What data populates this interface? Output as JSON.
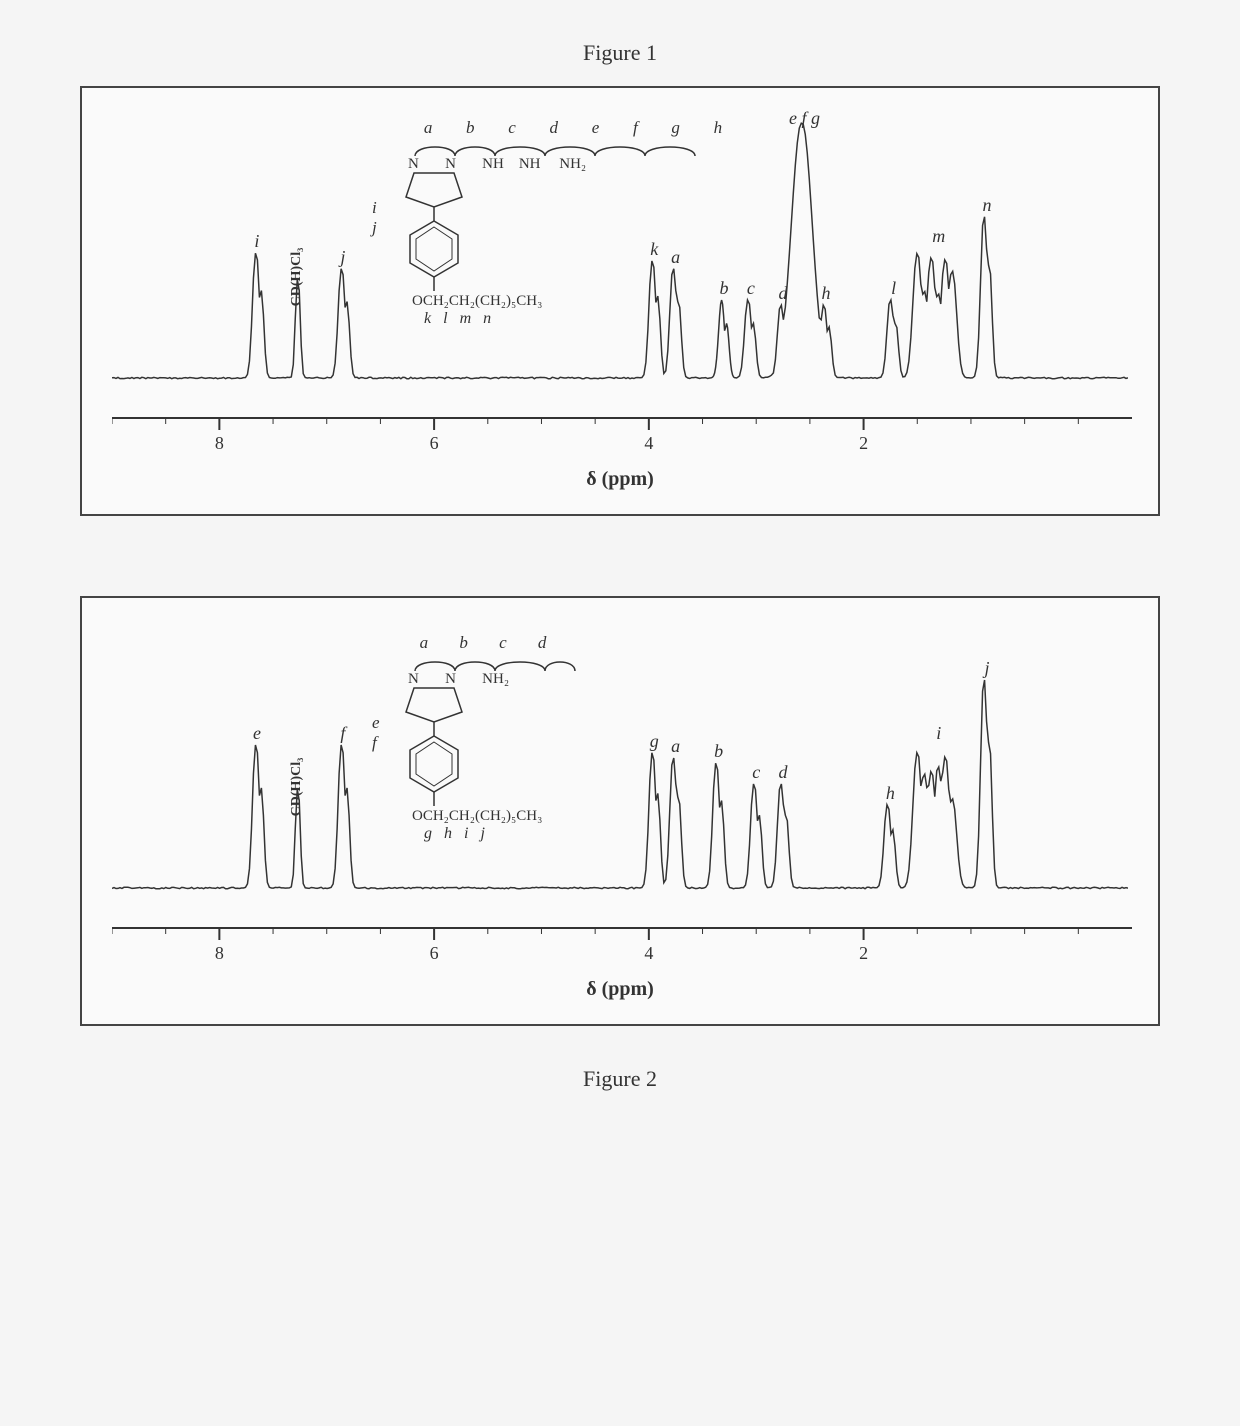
{
  "figure1": {
    "title": "Figure 1",
    "axis_title": "δ (ppm)",
    "x_range_ppm": [
      9.0,
      -0.5
    ],
    "x_ticks": [
      8,
      6,
      4,
      2
    ],
    "solvent_label": "CD(H)Cl₃",
    "solvent_ppm": 7.26,
    "peaks": [
      {
        "label": "i",
        "ppm": 7.65,
        "height": 0.48
      },
      {
        "label": "j",
        "ppm": 6.85,
        "height": 0.42
      },
      {
        "label": "k",
        "ppm": 3.95,
        "height": 0.45
      },
      {
        "label": "a",
        "ppm": 3.75,
        "height": 0.42
      },
      {
        "label": "b",
        "ppm": 3.3,
        "height": 0.3
      },
      {
        "label": "c",
        "ppm": 3.05,
        "height": 0.3
      },
      {
        "label": "d",
        "ppm": 2.75,
        "height": 0.28
      },
      {
        "label": "e f g",
        "ppm": 2.55,
        "height": 0.98,
        "wide": true
      },
      {
        "label": "h",
        "ppm": 2.35,
        "height": 0.28
      },
      {
        "label": "l",
        "ppm": 1.72,
        "height": 0.3
      },
      {
        "label": "m",
        "ppm": 1.3,
        "height": 0.5,
        "wide": true,
        "multi": true
      },
      {
        "label": "n",
        "ppm": 0.85,
        "height": 0.62
      }
    ],
    "baseline_color": "#444",
    "peak_color": "#333",
    "background": "#fafafa",
    "structure": {
      "top_labels": [
        "a",
        "b",
        "c",
        "d",
        "e",
        "f",
        "g",
        "h"
      ],
      "chain_atoms_html": "N&nbsp;&nbsp;&nbsp;&nbsp;&nbsp;&nbsp;&nbsp;N&nbsp;&nbsp;&nbsp;&nbsp;&nbsp;&nbsp;&nbsp;NH&nbsp;&nbsp;&nbsp;&nbsp;NH&nbsp;&nbsp;&nbsp;&nbsp;&nbsp;NH₂",
      "aryl_labels": [
        "i",
        "j"
      ],
      "alkyl_html": "OCH₂CH₂(CH₂)₅CH₃",
      "alkyl_labels": [
        "k",
        "l",
        "m",
        "n"
      ]
    }
  },
  "figure2": {
    "title": "Figure 2",
    "axis_title": "δ (ppm)",
    "x_range_ppm": [
      9.0,
      -0.5
    ],
    "x_ticks": [
      8,
      6,
      4,
      2
    ],
    "solvent_label": "CD(H)Cl₃",
    "solvent_ppm": 7.26,
    "peaks": [
      {
        "label": "e",
        "ppm": 7.65,
        "height": 0.55
      },
      {
        "label": "f",
        "ppm": 6.85,
        "height": 0.55
      },
      {
        "label": "g",
        "ppm": 3.95,
        "height": 0.52
      },
      {
        "label": "a",
        "ppm": 3.75,
        "height": 0.5
      },
      {
        "label": "b",
        "ppm": 3.35,
        "height": 0.48
      },
      {
        "label": "c",
        "ppm": 3.0,
        "height": 0.4
      },
      {
        "label": "d",
        "ppm": 2.75,
        "height": 0.4
      },
      {
        "label": "h",
        "ppm": 1.75,
        "height": 0.32
      },
      {
        "label": "i",
        "ppm": 1.3,
        "height": 0.55,
        "wide": true,
        "multi": true
      },
      {
        "label": "j",
        "ppm": 0.85,
        "height": 0.8
      }
    ],
    "baseline_color": "#444",
    "peak_color": "#333",
    "background": "#fafafa",
    "structure": {
      "top_labels": [
        "a",
        "b",
        "c",
        "d"
      ],
      "chain_atoms_html": "N&nbsp;&nbsp;&nbsp;&nbsp;&nbsp;&nbsp;&nbsp;N&nbsp;&nbsp;&nbsp;&nbsp;&nbsp;&nbsp;&nbsp;NH₂",
      "aryl_labels": [
        "e",
        "f"
      ],
      "alkyl_html": "OCH₂CH₂(CH₂)₅CH₃",
      "alkyl_labels": [
        "g",
        "h",
        "i",
        "j"
      ]
    }
  },
  "colors": {
    "border": "#444444",
    "text": "#333333",
    "background": "#f5f5f5",
    "panel_bg": "#fafafa"
  }
}
